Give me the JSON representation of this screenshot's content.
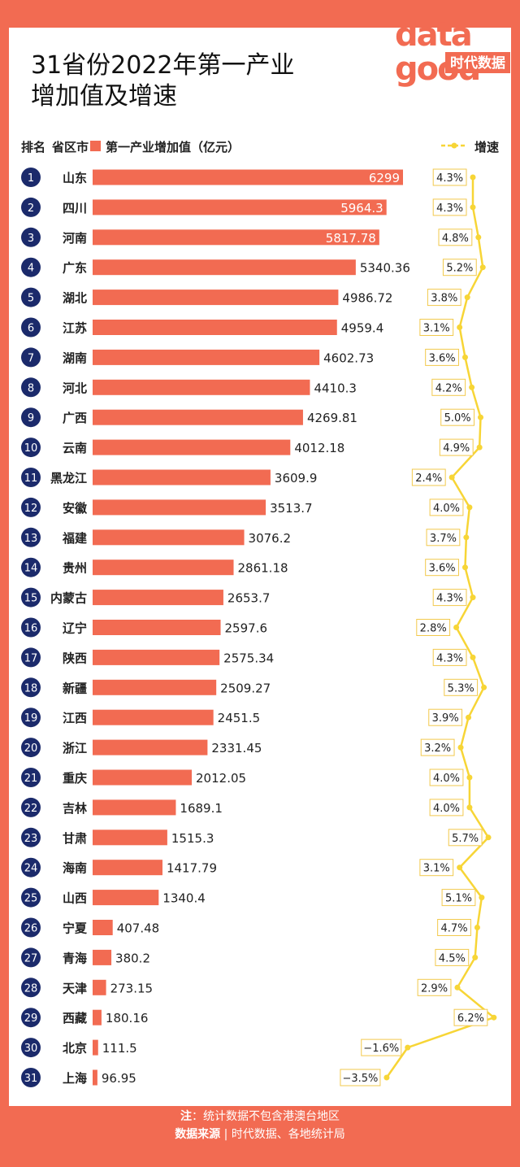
{
  "title_line1": "31省份2022年第一产业",
  "title_line2": "增加值及增速",
  "logo": {
    "word": "data",
    "word2": "good",
    "brand": "时代数据"
  },
  "headers": {
    "rank": "排名",
    "province": "省区市",
    "value": "第一产业增加值（亿元）",
    "growth": "增速"
  },
  "footer": {
    "note_label": "注",
    "note_text": "：统计数据不包含港澳台地区",
    "source_label": "数据来源",
    "source_sep": "|",
    "source_text": "时代数据、各地统计局"
  },
  "colors": {
    "bar": "#f26b52",
    "rank_circle": "#1b2a6b",
    "growth_line": "#f7d536",
    "background": "#f26b52"
  },
  "chart_data": {
    "type": "bar",
    "categories": [
      "山东",
      "四川",
      "河南",
      "广东",
      "湖北",
      "江苏",
      "湖南",
      "河北",
      "广西",
      "云南",
      "黑龙江",
      "安徽",
      "福建",
      "贵州",
      "内蒙古",
      "辽宁",
      "陕西",
      "新疆",
      "江西",
      "浙江",
      "重庆",
      "吉林",
      "甘肃",
      "海南",
      "山西",
      "宁夏",
      "青海",
      "天津",
      "西藏",
      "北京",
      "上海"
    ],
    "values": [
      6299,
      5964.3,
      5817.78,
      5340.36,
      4986.72,
      4959.4,
      4602.73,
      4410.3,
      4269.81,
      4012.18,
      3609.9,
      3513.7,
      3076.2,
      2861.18,
      2653.7,
      2597.6,
      2575.34,
      2509.27,
      2451.5,
      2331.45,
      2012.05,
      1689.1,
      1515.3,
      1417.79,
      1340.4,
      407.48,
      380.2,
      273.15,
      180.16,
      111.5,
      96.95
    ],
    "value_labels": [
      "6299",
      "5964.3",
      "5817.78",
      "5340.36",
      "4986.72",
      "4959.4",
      "4602.73",
      "4410.3",
      "4269.81",
      "4012.18",
      "3609.9",
      "3513.7",
      "3076.2",
      "2861.18",
      "2653.7",
      "2597.6",
      "2575.34",
      "2509.27",
      "2451.5",
      "2331.45",
      "2012.05",
      "1689.1",
      "1515.3",
      "1417.79",
      "1340.4",
      "407.48",
      "380.2",
      "273.15",
      "180.16",
      "111.5",
      "96.95"
    ],
    "growth": [
      4.3,
      4.3,
      4.8,
      5.2,
      3.8,
      3.1,
      3.6,
      4.2,
      5.0,
      4.9,
      2.4,
      4.0,
      3.7,
      3.6,
      4.3,
      2.8,
      4.3,
      5.3,
      3.9,
      3.2,
      4.0,
      4.0,
      5.7,
      3.1,
      5.1,
      4.7,
      4.5,
      2.9,
      6.2,
      -1.6,
      -3.5
    ],
    "growth_labels": [
      "4.3%",
      "4.3%",
      "4.8%",
      "5.2%",
      "3.8%",
      "3.1%",
      "3.6%",
      "4.2%",
      "5.0%",
      "4.9%",
      "2.4%",
      "4.0%",
      "3.7%",
      "3.6%",
      "4.3%",
      "2.8%",
      "4.3%",
      "5.3%",
      "3.9%",
      "3.2%",
      "4.0%",
      "4.0%",
      "5.7%",
      "3.1%",
      "5.1%",
      "4.7%",
      "4.5%",
      "2.9%",
      "6.2%",
      "−1.6%",
      "−3.5%"
    ],
    "ranks": [
      "1",
      "2",
      "3",
      "4",
      "5",
      "6",
      "7",
      "8",
      "9",
      "10",
      "11",
      "12",
      "13",
      "14",
      "15",
      "16",
      "17",
      "18",
      "19",
      "20",
      "21",
      "22",
      "23",
      "24",
      "25",
      "26",
      "27",
      "28",
      "29",
      "30",
      "31"
    ]
  }
}
